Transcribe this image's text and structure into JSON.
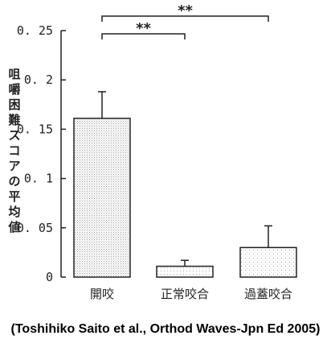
{
  "chart_data": {
    "type": "bar",
    "categories": [
      "開咬",
      "正常咬合",
      "過蓋咬合"
    ],
    "values": [
      0.161,
      0.011,
      0.03
    ],
    "error_bars": [
      0.027,
      0.006,
      0.022
    ],
    "ylabel": "咀嚼困難スコアの平均値",
    "ylim": [
      0,
      0.25
    ],
    "yticks": [
      0,
      0.05,
      0.1,
      0.15,
      0.2,
      0.25
    ],
    "ytick_labels": [
      "0",
      "0. 05",
      "0. 1",
      "0. 15",
      "0. 2",
      "0. 25"
    ],
    "grid": false,
    "significance": [
      {
        "from": 0,
        "to": 1,
        "label": "**"
      },
      {
        "from": 0,
        "to": 2,
        "label": "**"
      }
    ],
    "bar_pattern_colors": [
      "#c8c8c8",
      "#e4e4e4",
      "#d2d2d2"
    ]
  },
  "caption": "(Toshihiko Saito et al., Orthod Waves-Jpn Ed 2005)"
}
